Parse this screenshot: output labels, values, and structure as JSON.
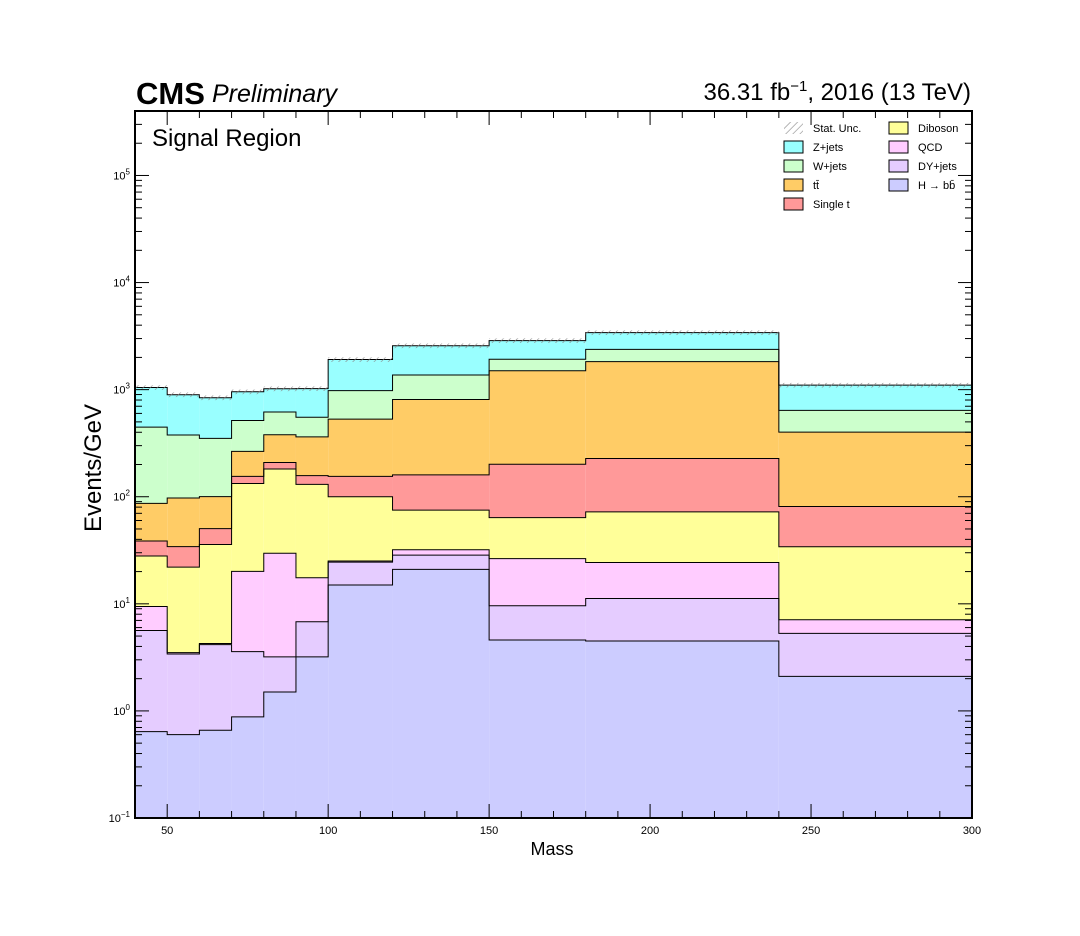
{
  "header": {
    "experiment": "CMS",
    "status": "Preliminary",
    "lumi": "36.31 fb",
    "lumi_exp": "−1",
    "lumi_suffix": ", 2016 (13 TeV)",
    "region": "Signal Region"
  },
  "chart_data": {
    "type": "area",
    "subtype": "stacked-histogram",
    "xlabel": "Mass",
    "ylabel": "Events/GeV",
    "xlim": [
      40,
      300
    ],
    "ylim": [
      0.1,
      400000
    ],
    "yscale": "log",
    "xticks": [
      50,
      100,
      150,
      200,
      250,
      300
    ],
    "ytick_labels": [
      {
        "base": "10",
        "exp": "−1",
        "value": 0.1
      },
      {
        "base": "10",
        "exp": "0",
        "value": 1
      },
      {
        "base": "10",
        "exp": "1",
        "value": 10
      },
      {
        "base": "10",
        "exp": "2",
        "value": 100
      },
      {
        "base": "10",
        "exp": "3",
        "value": 1000
      },
      {
        "base": "10",
        "exp": "4",
        "value": 10000
      },
      {
        "base": "10",
        "exp": "5",
        "value": 100000
      }
    ],
    "bin_edges": [
      40,
      50,
      60,
      70,
      80,
      90,
      100,
      120,
      150,
      180,
      240,
      300
    ],
    "stack_order": "bottom-to-top",
    "series": [
      {
        "name": "H → bb̄",
        "color": "#ccccff",
        "values": [
          0.64,
          0.6,
          0.66,
          0.88,
          1.5,
          3.2,
          15,
          21,
          4.6,
          4.5,
          2.1
        ]
      },
      {
        "name": "DY+jets",
        "color": "#e5ccff",
        "values": [
          5.0,
          2.8,
          3.5,
          2.7,
          1.7,
          3.6,
          9.5,
          7.5,
          5.0,
          6.7,
          3.2
        ]
      },
      {
        "name": "QCD",
        "color": "#ffccff",
        "values": [
          3.8,
          0.1,
          0.1,
          16.5,
          26.5,
          10.7,
          0.6,
          3.5,
          16.8,
          13.1,
          1.8
        ]
      },
      {
        "name": "Diboson",
        "color": "#ffff99",
        "values": [
          18.5,
          18.5,
          31.5,
          113,
          152,
          113,
          75,
          43,
          37.5,
          48,
          27
        ]
      },
      {
        "name": "Single t",
        "color": "#ff9999",
        "values": [
          10.7,
          12.2,
          14.6,
          22,
          27,
          27,
          55,
          85,
          137,
          155,
          47
        ]
      },
      {
        "name": "tt̄",
        "color": "#ffcc66",
        "values": [
          48,
          63,
          50,
          110,
          170,
          205,
          375,
          650,
          1300,
          1600,
          320
        ]
      },
      {
        "name": "W+jets",
        "color": "#ccffcc",
        "values": [
          360,
          280,
          250,
          250,
          240,
          190,
          450,
          560,
          420,
          550,
          240
        ]
      },
      {
        "name": "Z+jets",
        "color": "#99ffff",
        "values": [
          600,
          520,
          490,
          440,
          400,
          470,
          930,
          1200,
          950,
          1030,
          460
        ]
      }
    ],
    "uncertainty": {
      "name": "Stat. Unc.",
      "style": "hatched"
    },
    "legend": {
      "placement": "top-right",
      "columns": [
        [
          "Stat. Unc.",
          "Z+jets",
          "W+jets",
          "tt̄",
          "Single t"
        ],
        [
          "Diboson",
          "QCD",
          "DY+jets",
          "H → bb̄"
        ]
      ]
    },
    "grid": false
  }
}
